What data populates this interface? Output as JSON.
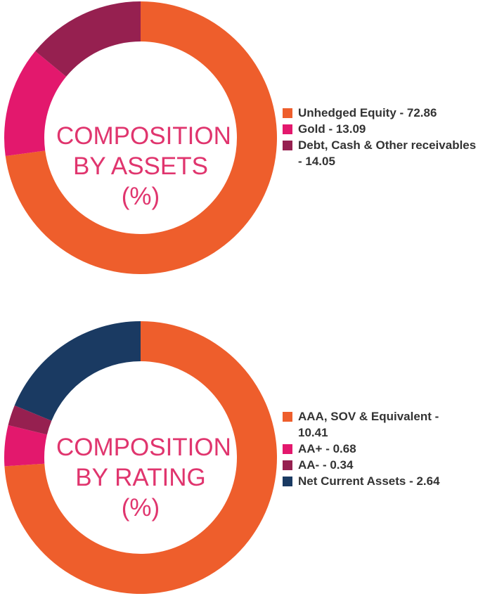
{
  "colors": {
    "orange": "#ee5e2c",
    "pink": "#e3186d",
    "maroon": "#962050",
    "navy": "#1a3a62",
    "title": "#e0356e"
  },
  "chart_data": [
    {
      "type": "pie",
      "title_lines": [
        "COMPOSITION",
        "BY ASSETS",
        "(%)"
      ],
      "series": [
        {
          "label": "Unhedged Equity - 72.86",
          "value": 72.86,
          "color": "#ee5e2c"
        },
        {
          "label": "Gold - 13.09",
          "value": 13.09,
          "color": "#e3186d"
        },
        {
          "label": "Debt, Cash & Other receivables - 14.05",
          "label_lines": [
            "Debt, Cash & Other receivables",
            "- 14.05"
          ],
          "value": 14.05,
          "color": "#962050"
        }
      ]
    },
    {
      "type": "pie",
      "title_lines": [
        "COMPOSITION",
        "BY RATING",
        "(%)"
      ],
      "series": [
        {
          "label": "AAA, SOV & Equivalent - 10.41",
          "label_lines": [
            "AAA, SOV & Equivalent -",
            "10.41"
          ],
          "value": 10.41,
          "color": "#ee5e2c"
        },
        {
          "label": "AA+ - 0.68",
          "value": 0.68,
          "color": "#e3186d"
        },
        {
          "label": "AA- - 0.34",
          "value": 0.34,
          "color": "#962050"
        },
        {
          "label": "Net Current Assets - 2.64",
          "value": 2.64,
          "color": "#1a3a62"
        }
      ]
    }
  ]
}
